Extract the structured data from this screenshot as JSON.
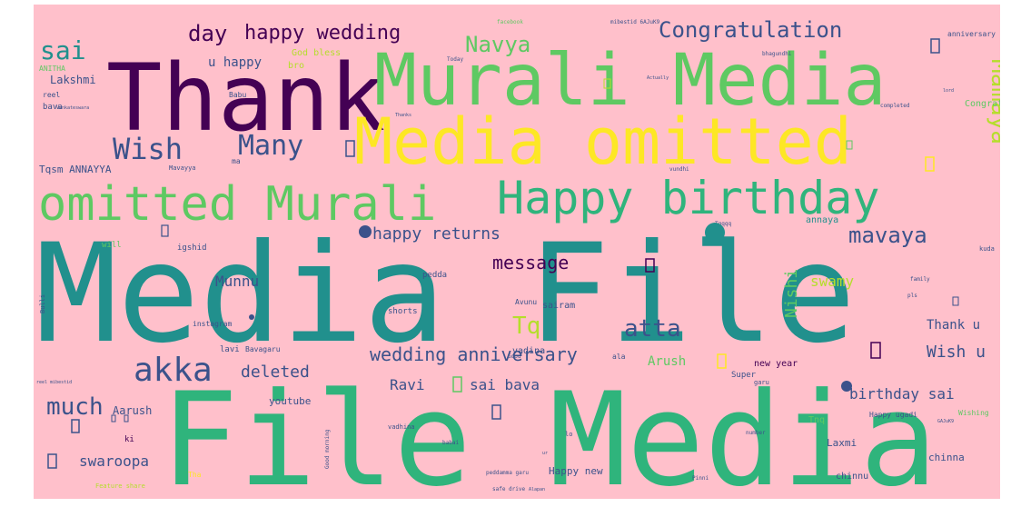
{
  "background_color": "#ffc0cb",
  "palette": {
    "dark_purple": "#440154",
    "indigo": "#3b528b",
    "teal": "#21908d",
    "green": "#2fb47c",
    "lime": "#5ec962",
    "yellow": "#fde725",
    "yellow_green": "#b5de2b"
  },
  "words": [
    {
      "text": "Media File"
    },
    {
      "text": "File Media"
    },
    {
      "text": "Thank"
    },
    {
      "text": "Murali Media"
    },
    {
      "text": "Media omitted"
    },
    {
      "text": "omitted Murali"
    },
    {
      "text": "Happy birthday"
    },
    {
      "text": "Wish"
    },
    {
      "text": "Many"
    },
    {
      "text": "sai"
    },
    {
      "text": "day"
    },
    {
      "text": "happy wedding"
    },
    {
      "text": "Navya"
    },
    {
      "text": "Congratulation"
    },
    {
      "text": "Mamaya"
    },
    {
      "text": "akka"
    },
    {
      "text": "much"
    },
    {
      "text": "mavaya"
    },
    {
      "text": "happy returns"
    },
    {
      "text": "message"
    },
    {
      "text": "Munnu"
    },
    {
      "text": "Tq"
    },
    {
      "text": "atta"
    },
    {
      "text": "wedding anniversary"
    },
    {
      "text": "deleted"
    },
    {
      "text": "Wish u"
    },
    {
      "text": "Nishi"
    },
    {
      "text": "swamy"
    },
    {
      "text": "Ravi"
    },
    {
      "text": "sai bava"
    },
    {
      "text": "birthday sai"
    },
    {
      "text": "swaroopa"
    },
    {
      "text": "Arush"
    },
    {
      "text": "Thank u"
    },
    {
      "text": "u happy"
    },
    {
      "text": "God bless"
    },
    {
      "text": "bro"
    },
    {
      "text": "Lakshmi"
    },
    {
      "text": "Tqsm ANNAYYA"
    },
    {
      "text": "Aarush"
    },
    {
      "text": "Happy new"
    },
    {
      "text": "youtube"
    },
    {
      "text": "Laxmi"
    },
    {
      "text": "chinna"
    },
    {
      "text": "chinnu"
    },
    {
      "text": "new year"
    },
    {
      "text": "Happy ugadi"
    },
    {
      "text": "Congrats"
    },
    {
      "text": "anniversary Ravi"
    },
    {
      "text": "vadina"
    },
    {
      "text": "sairam"
    },
    {
      "text": "annaya"
    },
    {
      "text": "shorts"
    },
    {
      "text": "pedda"
    },
    {
      "text": "instagram"
    },
    {
      "text": "Babu"
    },
    {
      "text": "Avunu"
    },
    {
      "text": "Super"
    },
    {
      "text": "lavi"
    },
    {
      "text": "Bavagaru"
    },
    {
      "text": "ANITHA"
    },
    {
      "text": "Tnq"
    },
    {
      "text": "bava"
    },
    {
      "text": "reel"
    },
    {
      "text": "ki"
    },
    {
      "text": "will"
    },
    {
      "text": "igshid"
    },
    {
      "text": "ma"
    },
    {
      "text": "Mavayya"
    },
    {
      "text": "Wishing"
    },
    {
      "text": "facebook"
    },
    {
      "text": "mibestid 6AJuK9"
    },
    {
      "text": "bhagundhi"
    },
    {
      "text": "Today"
    },
    {
      "text": "completed"
    },
    {
      "text": "vundhi"
    },
    {
      "text": "vadhina"
    },
    {
      "text": "safe drive"
    },
    {
      "text": "Pinni"
    },
    {
      "text": "Good"
    },
    {
      "text": "ala"
    },
    {
      "text": "garu"
    },
    {
      "text": "kuda"
    },
    {
      "text": "Tqqqq"
    },
    {
      "text": "family"
    },
    {
      "text": "pls"
    },
    {
      "text": "Feature share"
    },
    {
      "text": "Good morning"
    },
    {
      "text": "peddamma garu"
    },
    {
      "text": "babai"
    },
    {
      "text": "number"
    },
    {
      "text": "Tha"
    },
    {
      "text": "Bulli"
    },
    {
      "text": "reel mibestid"
    },
    {
      "text": "Thanks"
    },
    {
      "text": "Venkateswara"
    },
    {
      "text": "lord"
    },
    {
      "text": "Actually"
    },
    {
      "text": "GAJuK9"
    },
    {
      "text": "lo"
    },
    {
      "text": "Alapan"
    },
    {
      "text": "ur"
    }
  ]
}
